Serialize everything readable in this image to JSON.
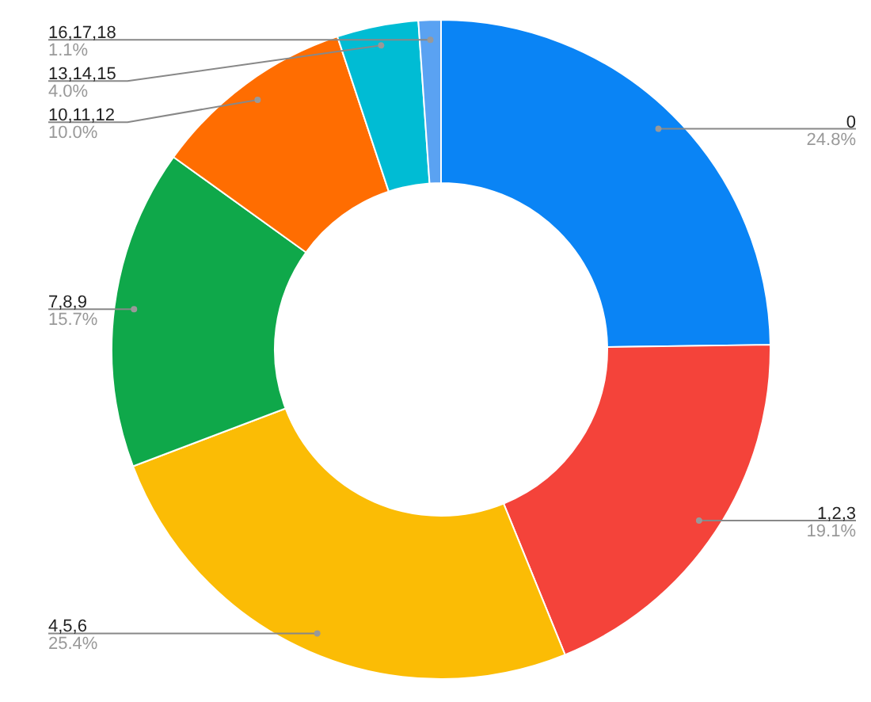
{
  "chart_data": {
    "type": "donut",
    "categories": [
      "0",
      "1,2,3",
      "4,5,6",
      "7,8,9",
      "10,11,12",
      "13,14,15",
      "16,17,18"
    ],
    "values": [
      24.8,
      19.1,
      25.4,
      15.7,
      10.0,
      4.0,
      1.1
    ],
    "value_labels": [
      "24.8%",
      "19.1%",
      "25.4%",
      "15.7%",
      "10.0%",
      "4.0%",
      "1.1%"
    ],
    "colors": [
      "#0a84f5",
      "#f4433a",
      "#fbbc05",
      "#0fa84a",
      "#ff6d01",
      "#00bcd4",
      "#5aa2f2"
    ]
  }
}
